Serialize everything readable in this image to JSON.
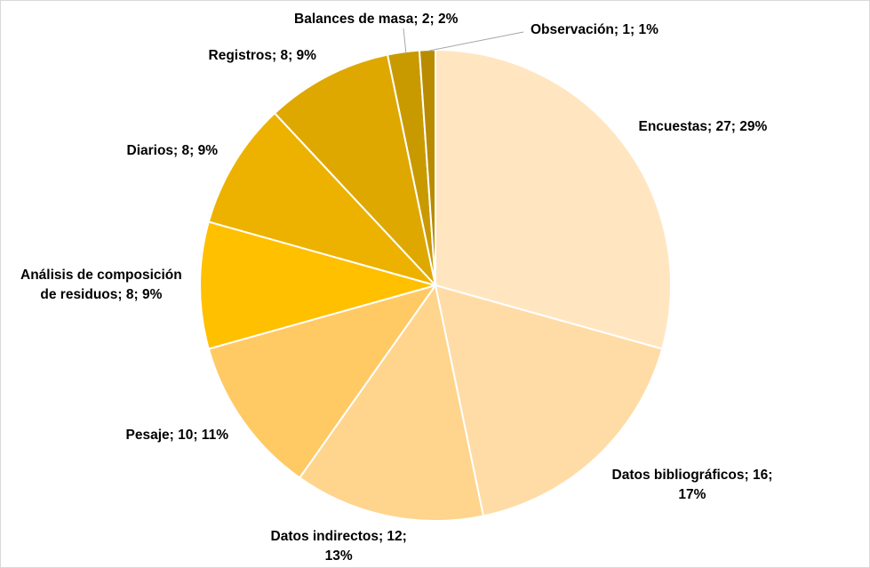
{
  "chart_data": {
    "type": "pie",
    "title": "",
    "legend": "none",
    "slices": [
      {
        "name": "Encuestas",
        "value": 27,
        "percent": "29%",
        "color": "#FFE6C1",
        "label_lines": [
          "Encuestas; 27; 29%"
        ]
      },
      {
        "name": "Datos bibliográficos",
        "value": 16,
        "percent": "17%",
        "color": "#FFDCA6",
        "label_lines": [
          "Datos bibliográficos; 16;",
          "17%"
        ]
      },
      {
        "name": "Datos indirectos",
        "value": 12,
        "percent": "13%",
        "color": "#FFD48C",
        "label_lines": [
          "Datos indirectos; 12;",
          "13%"
        ]
      },
      {
        "name": "Pesaje",
        "value": 10,
        "percent": "11%",
        "color": "#FFC964",
        "label_lines": [
          "Pesaje; 10; 11%"
        ]
      },
      {
        "name": "Análisis de composición de residuos",
        "value": 8,
        "percent": "9%",
        "color": "#FFC000",
        "label_lines": [
          "Análisis de composición",
          "de residuos; 8; 9%"
        ]
      },
      {
        "name": "Diarios",
        "value": 8,
        "percent": "9%",
        "color": "#EDB200",
        "label_lines": [
          "Diarios; 8; 9%"
        ]
      },
      {
        "name": "Registros",
        "value": 8,
        "percent": "9%",
        "color": "#DEA800",
        "label_lines": [
          "Registros; 8; 9%"
        ]
      },
      {
        "name": "Balances de masa",
        "value": 2,
        "percent": "2%",
        "color": "#C99A00",
        "label_lines": [
          "Balances de masa; 2; 2%"
        ]
      },
      {
        "name": "Observación",
        "value": 1,
        "percent": "1%",
        "color": "#B88B00",
        "label_lines": [
          "Observación; 1; 1%"
        ]
      }
    ]
  }
}
